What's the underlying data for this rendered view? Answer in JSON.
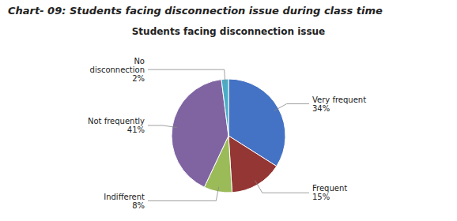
{
  "chart_data": {
    "type": "pie",
    "title": "Chart- 09: Students facing disconnection issue during class time",
    "subtitle": "Students facing disconnection issue",
    "categories": [
      "Very frequent",
      "Frequent",
      "Indifferent",
      "Not frequently",
      "No\ndisconnection"
    ],
    "values": [
      34,
      15,
      8,
      41,
      2
    ],
    "value_labels": [
      "34%",
      "15%",
      "8%",
      "41%",
      "2%"
    ],
    "colors": [
      "#4472C4",
      "#943634",
      "#9BBB59",
      "#8064A2",
      "#4BACC6"
    ],
    "data_labels": true
  }
}
